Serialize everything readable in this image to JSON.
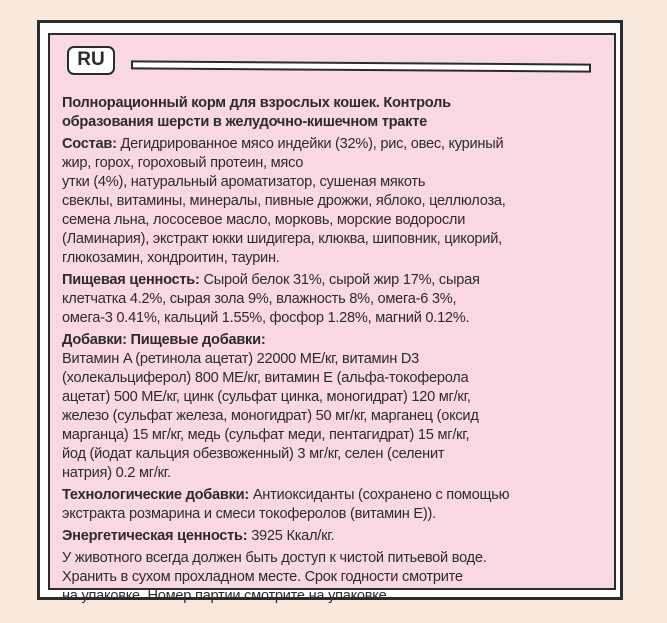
{
  "badge": "RU",
  "title": [
    "Полнорационный корм для взрослых кошек. Контроль",
    "образования шерсти в желудочно-кишечном тракте"
  ],
  "sections": [
    {
      "label": "Состав:",
      "lines": [
        " Дегидрированное мясо индейки (32%), рис, овес, куриный",
        "жир, горох, гороховый протеин, мясо",
        "утки (4%), натуральный ароматизатор, сушеная мякоть",
        "свеклы, витамины, минералы, пивные дрожжи, яблоко, целлюлоза,",
        "семена льна, лососевое масло, морковь, морские водоросли",
        "(Ламинария), экстракт юкки шидигера, клюква, шиповник, цикорий,",
        "глюкозамин, хондроитин, таурин."
      ]
    },
    {
      "label": "Пищевая ценность:",
      "lines": [
        " Сырой белок 31%, сырой жир 17%, сырая",
        "клетчатка 4.2%, сырая зола 9%, влажность 8%, омега-6 3%,",
        "омега-3 0.41%, кальций 1.55%, фосфор 1.28%, магний 0.12%."
      ]
    },
    {
      "label": "Добавки: Пищевые добавки:",
      "lines": [
        "",
        "Витамин A (ретинола ацетат) 22000 МЕ/кг, витамин D3",
        "(холекальциферол) 800 МЕ/кг, витамин Е (альфа-токоферола",
        "ацетат) 500 МЕ/кг, цинк (сульфат цинка, моногидрат) 120 мг/кг,",
        "железо (сульфат железа, моногидрат) 50 мг/кг, марганец (оксид",
        "марганца) 15 мг/кг, медь (сульфат меди, пентагидрат) 15 мг/кг,",
        "йод (йодат кальция обезвоженный) 3 мг/кг, селен (селенит",
        "натрия) 0.2 мг/кг."
      ]
    },
    {
      "label": "Технологические добавки:",
      "lines": [
        " Антиоксиданты (сохранено с помощью",
        "экстракта розмарина и смеси токоферолов (витамин Е))."
      ]
    },
    {
      "label": "Энергетическая ценность:",
      "lines": [
        " 3925 Ккал/кг."
      ]
    },
    {
      "label": "",
      "lines": [
        "У животного всегда должен быть доступ к чистой питьевой воде.",
        "Хранить в сухом прохладном месте. Срок годности смотрите",
        "на упаковке. Номер партии смотрите на упаковке."
      ]
    }
  ]
}
